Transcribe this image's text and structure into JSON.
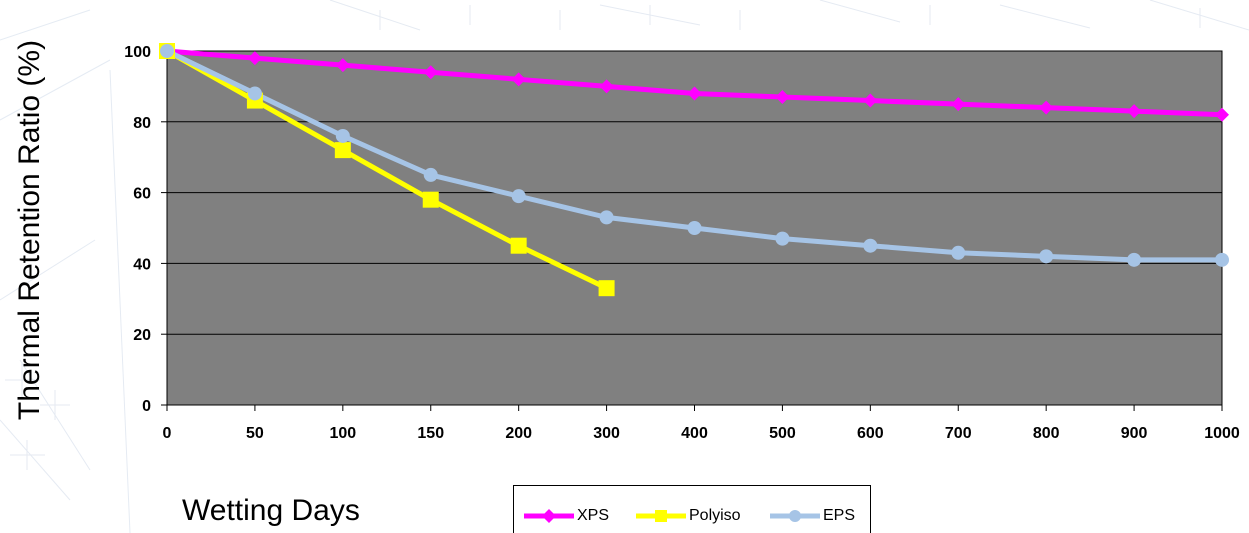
{
  "chart_data": {
    "type": "line",
    "title": "",
    "xlabel": "Wetting Days",
    "ylabel": "Thermal Retention Ratio (%)",
    "categories": [
      "0",
      "50",
      "100",
      "150",
      "200",
      "300",
      "400",
      "500",
      "600",
      "700",
      "800",
      "900",
      "1000"
    ],
    "ylim": [
      0,
      100
    ],
    "yticks": [
      0,
      20,
      40,
      60,
      80,
      100
    ],
    "grid": "horizontal",
    "plot_background": "#808080",
    "legend_position": "bottom-center",
    "series": [
      {
        "name": "XPS",
        "color": "#ff00ff",
        "marker": "diamond",
        "values": [
          100,
          98,
          96,
          94,
          92,
          90,
          88,
          87,
          86,
          85,
          84,
          83,
          82
        ]
      },
      {
        "name": "Polyiso",
        "color": "#ffff00",
        "marker": "square",
        "values": [
          100,
          86,
          72,
          58,
          45,
          33,
          null,
          null,
          null,
          null,
          null,
          null,
          null
        ]
      },
      {
        "name": "EPS",
        "color": "#a6c4e6",
        "marker": "circle",
        "values": [
          100,
          88,
          76,
          65,
          59,
          53,
          50,
          47,
          45,
          43,
          42,
          41,
          41
        ]
      }
    ]
  }
}
